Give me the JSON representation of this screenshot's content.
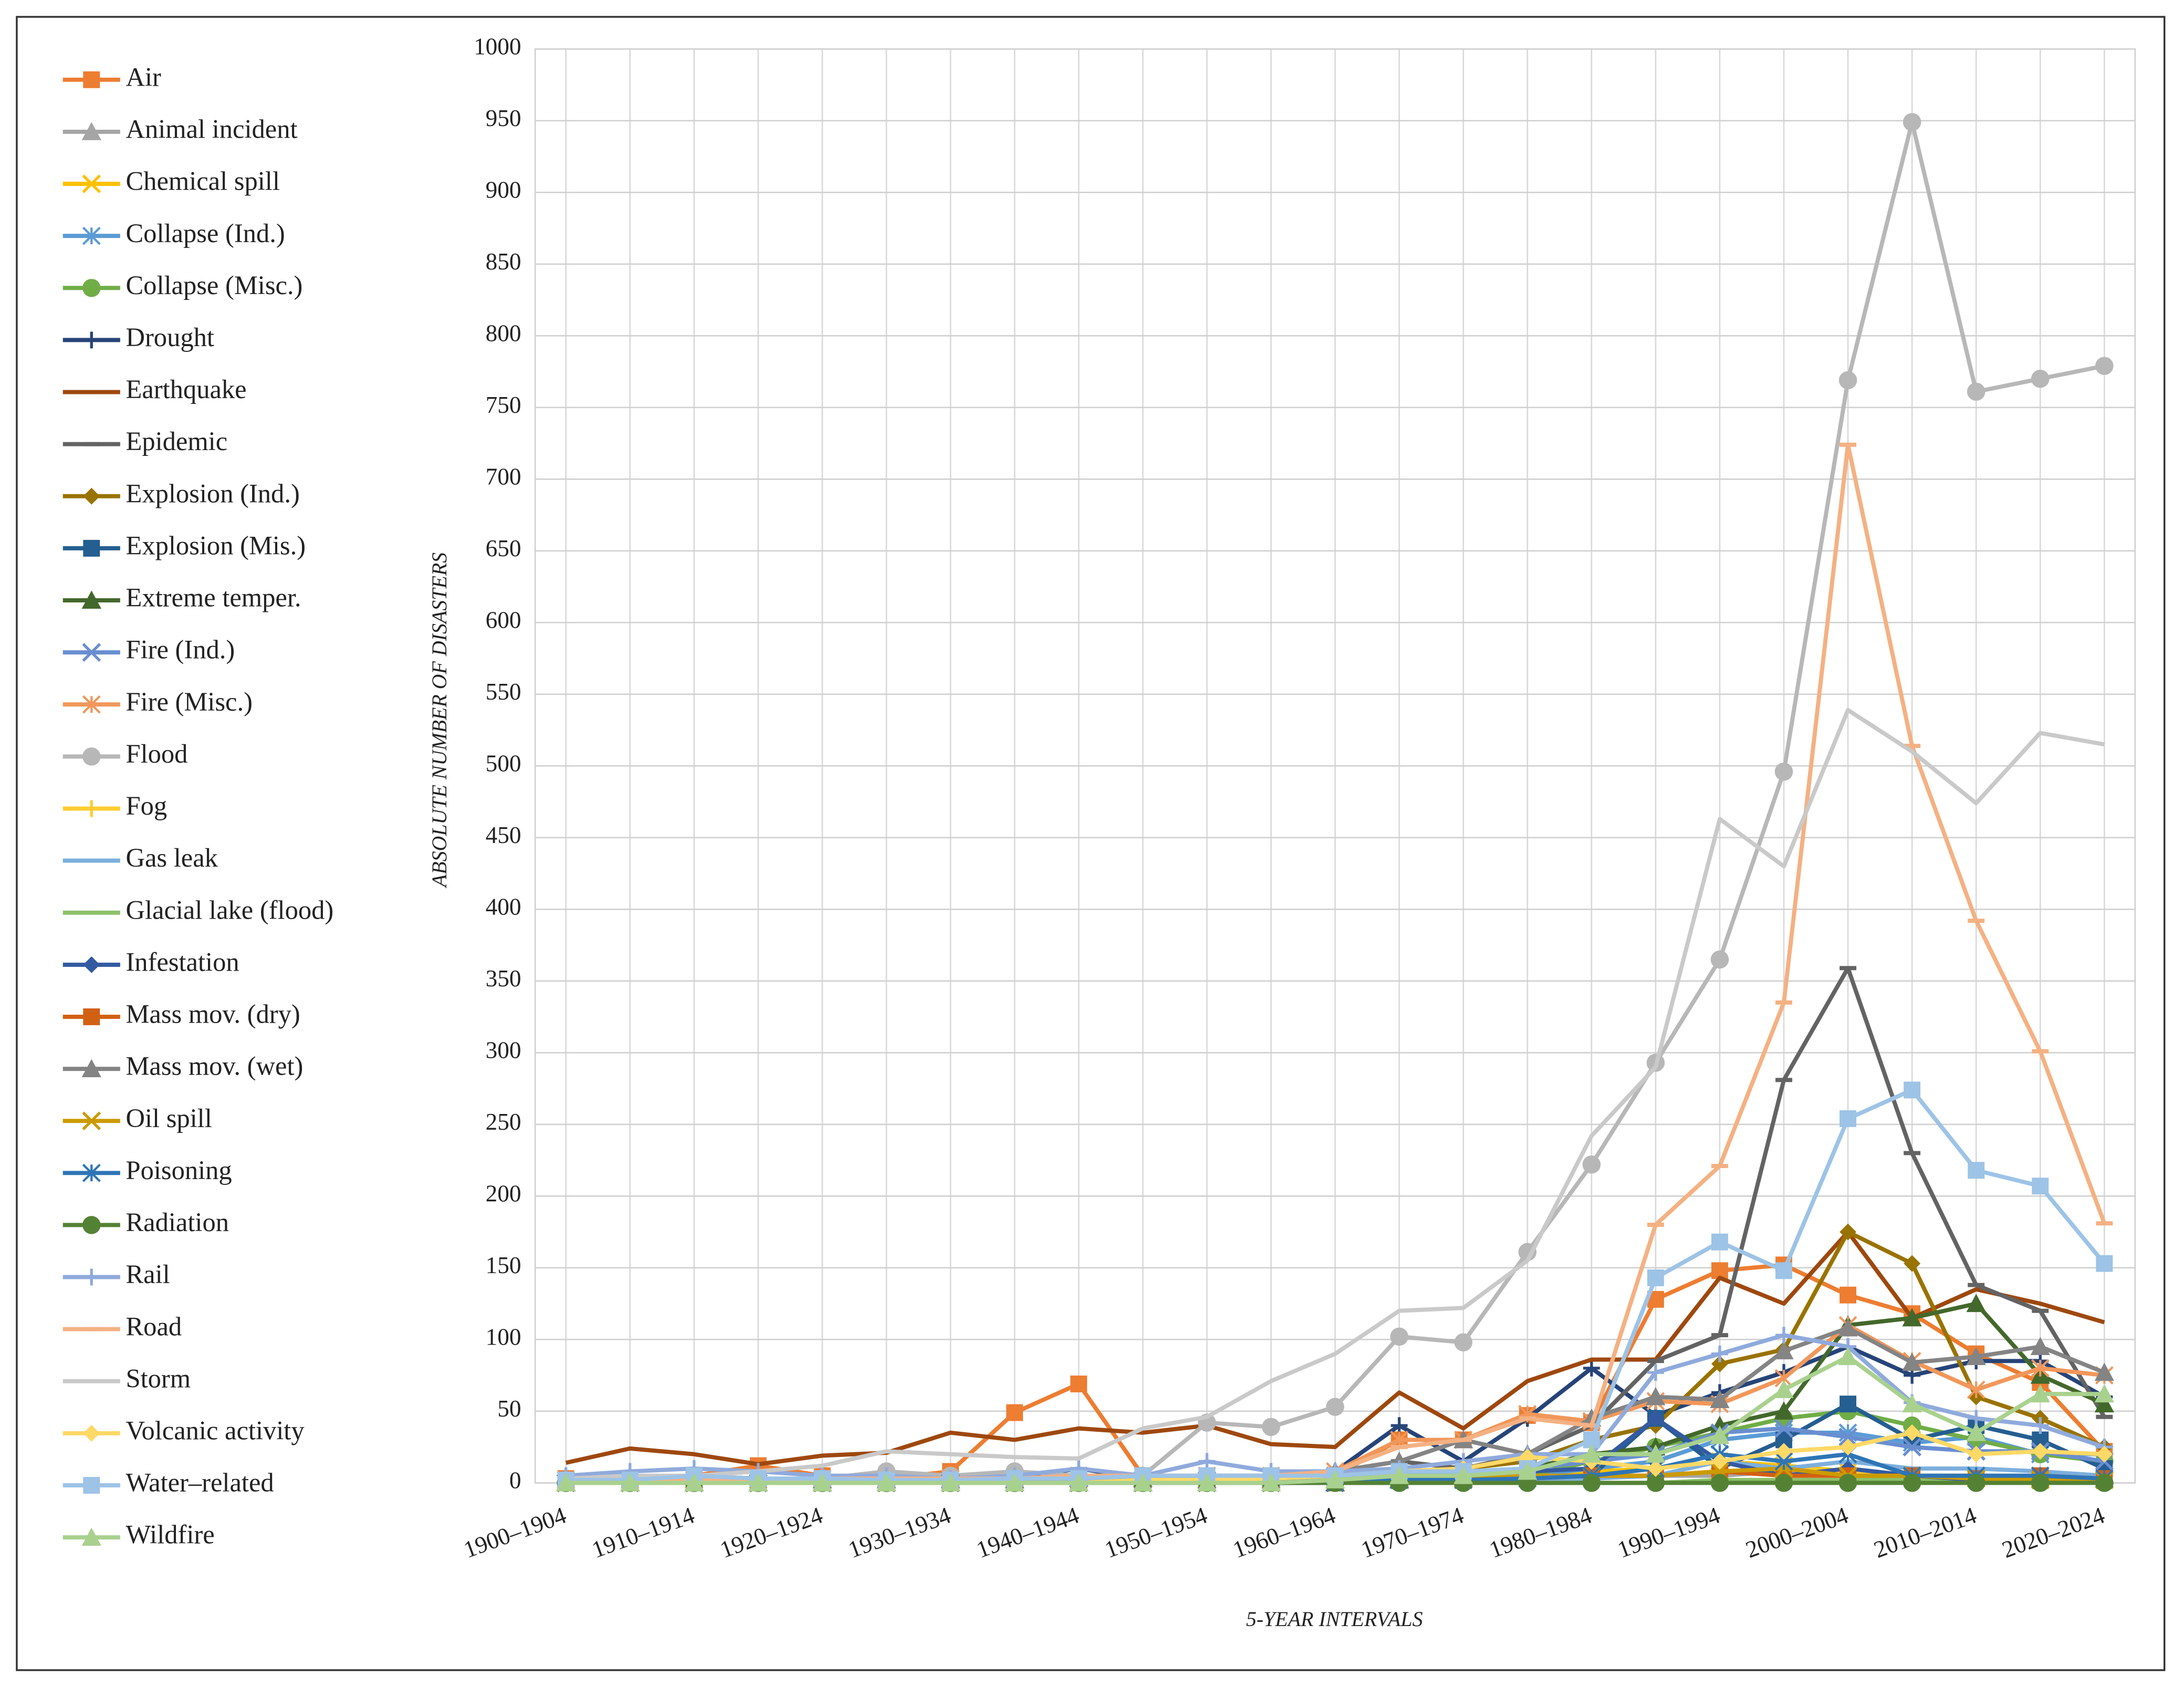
{
  "chart_data": {
    "type": "line",
    "x_label": "5-YEAR INTERVALS",
    "y_label": "ABSOLUTE NUMBER OF DISASTERS",
    "categories": [
      "1900–1904",
      null,
      "1910–1914",
      null,
      "1920–1924",
      null,
      "1930–1934",
      null,
      "1940–1944",
      null,
      "1950–1954",
      null,
      "1960–1964",
      null,
      "1970–1974",
      null,
      "1980–1984",
      null,
      "1990–1994",
      null,
      "2000–2004",
      null,
      "2010–2014",
      null,
      "2020–2024"
    ],
    "ylim": [
      0,
      1000
    ],
    "yticks": [
      0,
      50,
      100,
      150,
      200,
      250,
      300,
      350,
      400,
      450,
      500,
      550,
      600,
      650,
      700,
      750,
      800,
      850,
      900,
      950,
      1000
    ],
    "grid": true,
    "legend": "left",
    "series": [
      {
        "name": "Air",
        "color": "#ED7D31",
        "marker": "square",
        "values": [
          3,
          2,
          5,
          12,
          5,
          3,
          8,
          49,
          69,
          5,
          5,
          5,
          5,
          30,
          30,
          47,
          42,
          128,
          148,
          152,
          131,
          118,
          90,
          70,
          22
        ]
      },
      {
        "name": "Animal incident",
        "color": "#A5A5A5",
        "marker": "triangle",
        "values": [
          0,
          0,
          0,
          0,
          0,
          0,
          0,
          0,
          0,
          0,
          2,
          2,
          2,
          3,
          3,
          5,
          5,
          5,
          5,
          8,
          8,
          5,
          5,
          5,
          5
        ]
      },
      {
        "name": "Chemical spill",
        "color": "#FFC000",
        "marker": "x",
        "values": [
          0,
          0,
          0,
          0,
          0,
          0,
          0,
          0,
          0,
          0,
          0,
          0,
          0,
          2,
          3,
          5,
          8,
          10,
          15,
          12,
          8,
          5,
          5,
          3,
          2
        ]
      },
      {
        "name": "Collapse (Ind.)",
        "color": "#5B9BD5",
        "marker": "asterisk",
        "values": [
          0,
          0,
          0,
          0,
          0,
          0,
          0,
          0,
          0,
          0,
          0,
          0,
          2,
          3,
          3,
          5,
          10,
          15,
          30,
          35,
          35,
          28,
          32,
          20,
          20
        ]
      },
      {
        "name": "Collapse (Misc.)",
        "color": "#70AD47",
        "marker": "circle",
        "values": [
          0,
          0,
          0,
          0,
          0,
          0,
          0,
          0,
          0,
          0,
          0,
          0,
          0,
          2,
          3,
          5,
          15,
          25,
          35,
          45,
          50,
          40,
          30,
          20,
          15
        ]
      },
      {
        "name": "Drought",
        "color": "#264478",
        "marker": "plus",
        "values": [
          0,
          2,
          5,
          3,
          2,
          2,
          2,
          3,
          10,
          3,
          5,
          5,
          8,
          40,
          15,
          45,
          80,
          47,
          63,
          77,
          95,
          75,
          85,
          85,
          60
        ]
      },
      {
        "name": "Earthquake",
        "color": "#9E480E",
        "marker": "none",
        "values": [
          14,
          24,
          20,
          13,
          19,
          21,
          35,
          30,
          38,
          35,
          40,
          27,
          25,
          63,
          38,
          71,
          86,
          86,
          143,
          125,
          175,
          115,
          135,
          125,
          112
        ]
      },
      {
        "name": "Epidemic",
        "color": "#636363",
        "marker": "dash",
        "values": [
          0,
          0,
          0,
          2,
          2,
          2,
          2,
          2,
          3,
          3,
          5,
          5,
          8,
          15,
          10,
          20,
          40,
          85,
          103,
          281,
          359,
          230,
          138,
          120,
          46
        ]
      },
      {
        "name": "Explosion (Ind.)",
        "color": "#997300",
        "marker": "diamond",
        "values": [
          0,
          0,
          0,
          0,
          0,
          0,
          0,
          0,
          0,
          2,
          2,
          3,
          5,
          8,
          10,
          15,
          30,
          40,
          83,
          93,
          175,
          153,
          60,
          45,
          25
        ]
      },
      {
        "name": "Explosion (Mis.)",
        "color": "#255E91",
        "marker": "square",
        "values": [
          0,
          0,
          0,
          0,
          0,
          0,
          0,
          0,
          0,
          0,
          0,
          2,
          3,
          5,
          5,
          5,
          5,
          45,
          10,
          30,
          55,
          30,
          40,
          30,
          10
        ]
      },
      {
        "name": "Extreme temper.",
        "color": "#43682B",
        "marker": "triangle",
        "values": [
          0,
          0,
          0,
          0,
          0,
          0,
          0,
          0,
          0,
          0,
          0,
          0,
          0,
          2,
          5,
          10,
          20,
          25,
          40,
          50,
          110,
          115,
          125,
          75,
          55
        ]
      },
      {
        "name": "Fire (Ind.)",
        "color": "#698ED0",
        "marker": "x",
        "values": [
          0,
          0,
          0,
          0,
          0,
          0,
          0,
          0,
          0,
          2,
          2,
          3,
          5,
          5,
          8,
          10,
          15,
          20,
          35,
          38,
          32,
          25,
          22,
          22,
          15
        ]
      },
      {
        "name": "Fire (Misc.)",
        "color": "#F1975A",
        "marker": "asterisk",
        "values": [
          2,
          2,
          2,
          2,
          3,
          3,
          3,
          3,
          5,
          5,
          5,
          5,
          8,
          30,
          30,
          48,
          43,
          57,
          55,
          73,
          110,
          85,
          65,
          80,
          75
        ]
      },
      {
        "name": "Flood",
        "color": "#B7B7B7",
        "marker": "circle",
        "values": [
          0,
          0,
          2,
          2,
          3,
          8,
          5,
          8,
          5,
          5,
          42,
          39,
          53,
          102,
          98,
          161,
          222,
          293,
          365,
          496,
          769,
          949,
          761,
          770,
          779
        ]
      },
      {
        "name": "Fog",
        "color": "#FFCD33",
        "marker": "plus",
        "values": [
          0,
          0,
          0,
          0,
          0,
          0,
          0,
          0,
          0,
          0,
          0,
          0,
          0,
          2,
          2,
          3,
          5,
          5,
          8,
          10,
          8,
          5,
          3,
          3,
          2
        ]
      },
      {
        "name": "Gas leak",
        "color": "#7CAFDD",
        "marker": "none",
        "values": [
          0,
          0,
          0,
          0,
          0,
          0,
          0,
          0,
          0,
          0,
          0,
          0,
          0,
          0,
          2,
          2,
          3,
          5,
          15,
          10,
          15,
          10,
          10,
          8,
          5
        ]
      },
      {
        "name": "Glacial lake (flood)",
        "color": "#8CC168",
        "marker": "none",
        "values": [
          0,
          0,
          0,
          0,
          0,
          0,
          0,
          0,
          0,
          0,
          0,
          0,
          0,
          0,
          0,
          0,
          0,
          0,
          2,
          2,
          2,
          3,
          2,
          2,
          2
        ]
      },
      {
        "name": "Infestation",
        "color": "#335AA1",
        "marker": "diamond",
        "values": [
          0,
          0,
          0,
          0,
          0,
          0,
          0,
          0,
          0,
          0,
          0,
          0,
          2,
          3,
          5,
          8,
          10,
          45,
          15,
          5,
          10,
          5,
          2,
          2,
          2
        ]
      },
      {
        "name": "Mass mov. (dry)",
        "color": "#D26012",
        "marker": "square",
        "values": [
          0,
          0,
          0,
          0,
          0,
          0,
          0,
          0,
          0,
          0,
          0,
          0,
          2,
          2,
          2,
          3,
          5,
          5,
          8,
          5,
          5,
          5,
          3,
          5,
          3
        ]
      },
      {
        "name": "Mass mov. (wet)",
        "color": "#848484",
        "marker": "triangle",
        "values": [
          0,
          0,
          0,
          0,
          2,
          2,
          2,
          2,
          3,
          3,
          5,
          5,
          8,
          15,
          30,
          20,
          45,
          60,
          58,
          92,
          108,
          84,
          88,
          95,
          77
        ]
      },
      {
        "name": "Oil spill",
        "color": "#CC9A00",
        "marker": "x",
        "values": [
          0,
          0,
          0,
          0,
          0,
          0,
          0,
          0,
          0,
          0,
          0,
          0,
          0,
          2,
          3,
          5,
          5,
          5,
          8,
          10,
          5,
          5,
          3,
          2,
          2
        ]
      },
      {
        "name": "Poisoning",
        "color": "#2E75B6",
        "marker": "asterisk",
        "values": [
          0,
          0,
          0,
          0,
          0,
          0,
          0,
          0,
          0,
          0,
          0,
          0,
          0,
          2,
          2,
          3,
          5,
          10,
          20,
          15,
          20,
          5,
          5,
          5,
          3
        ]
      },
      {
        "name": "Radiation",
        "color": "#548235",
        "marker": "circle",
        "values": [
          0,
          0,
          0,
          0,
          0,
          0,
          0,
          0,
          0,
          0,
          0,
          0,
          0,
          0,
          0,
          0,
          0,
          0,
          0,
          0,
          0,
          0,
          0,
          0,
          0
        ]
      },
      {
        "name": "Rail",
        "color": "#8FAADC",
        "marker": "plus",
        "values": [
          5,
          8,
          10,
          8,
          5,
          5,
          3,
          5,
          10,
          5,
          15,
          8,
          8,
          10,
          15,
          20,
          20,
          77,
          90,
          103,
          95,
          56,
          45,
          40,
          25
        ]
      },
      {
        "name": "Road",
        "color": "#F4B183",
        "marker": "dash",
        "values": [
          2,
          2,
          2,
          2,
          3,
          3,
          3,
          3,
          5,
          5,
          5,
          5,
          8,
          25,
          30,
          45,
          40,
          180,
          221,
          335,
          724,
          514,
          392,
          301,
          181
        ]
      },
      {
        "name": "Storm",
        "color": "#C9C9C9",
        "marker": "none",
        "values": [
          3,
          5,
          5,
          8,
          12,
          22,
          20,
          18,
          17,
          38,
          46,
          71,
          90,
          120,
          122,
          155,
          242,
          290,
          463,
          430,
          539,
          510,
          474,
          523,
          515
        ]
      },
      {
        "name": "Volcanic activity",
        "color": "#FFD966",
        "marker": "diamond",
        "values": [
          0,
          0,
          0,
          0,
          0,
          0,
          0,
          0,
          0,
          2,
          2,
          3,
          5,
          8,
          10,
          18,
          15,
          10,
          15,
          22,
          25,
          35,
          20,
          22,
          20
        ]
      },
      {
        "name": "Water–related",
        "color": "#9DC3E6",
        "marker": "square",
        "values": [
          2,
          2,
          5,
          3,
          3,
          2,
          2,
          3,
          3,
          5,
          5,
          5,
          5,
          8,
          8,
          10,
          30,
          143,
          168,
          148,
          254,
          274,
          218,
          207,
          153
        ]
      },
      {
        "name": "Wildfire",
        "color": "#A9D18E",
        "marker": "triangle",
        "values": [
          0,
          0,
          0,
          0,
          0,
          0,
          0,
          0,
          0,
          0,
          0,
          0,
          2,
          5,
          5,
          8,
          20,
          20,
          33,
          65,
          88,
          55,
          35,
          62,
          62
        ]
      }
    ]
  }
}
